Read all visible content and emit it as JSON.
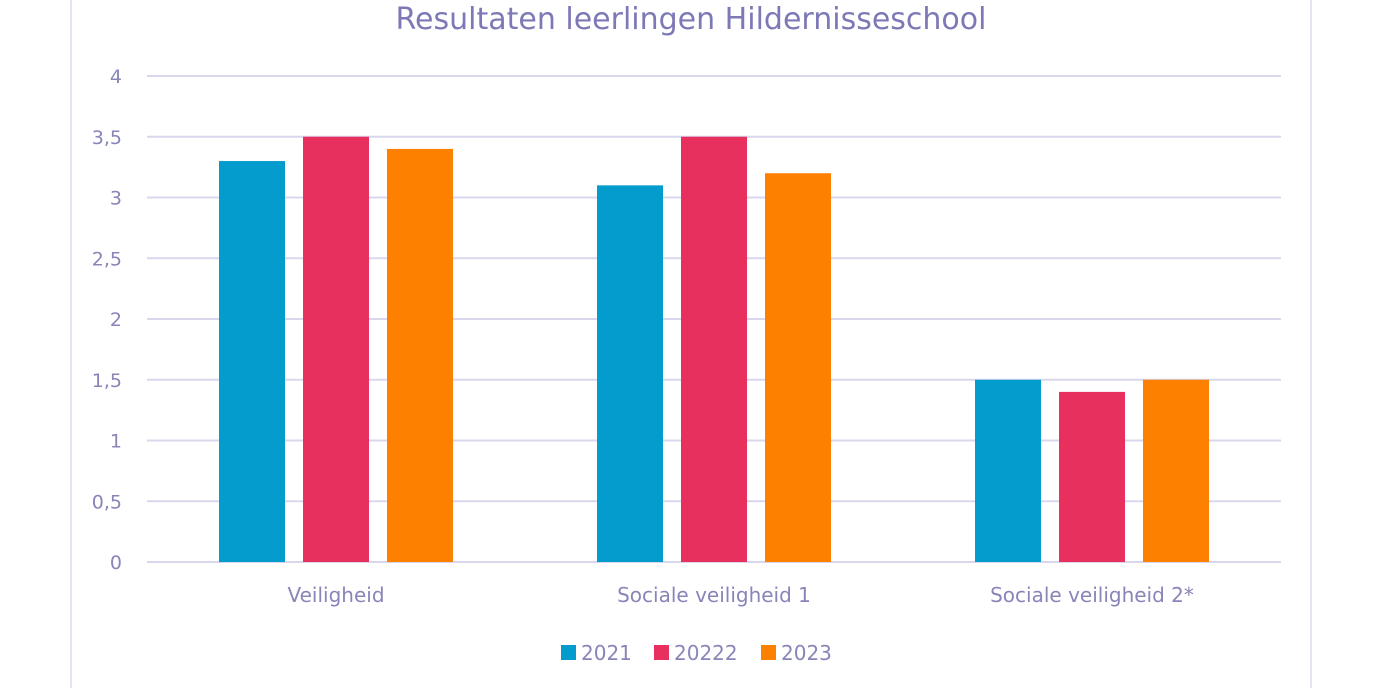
{
  "chart_data": {
    "type": "bar",
    "title": "Resultaten leerlingen Hildernisseschool",
    "xlabel": "",
    "ylabel": "",
    "categories": [
      "Veiligheid",
      "Sociale veiligheid 1",
      "Sociale veiligheid 2*"
    ],
    "series": [
      {
        "name": "2021",
        "color": "#049ccc",
        "values": [
          3.3,
          3.1,
          1.5
        ]
      },
      {
        "name": "20222",
        "color": "#e8305f",
        "values": [
          3.5,
          3.5,
          1.4
        ]
      },
      {
        "name": "2023",
        "color": "#fd8001",
        "values": [
          3.4,
          3.2,
          1.5
        ]
      }
    ],
    "ylim": [
      0,
      4
    ],
    "yticks": [
      "0",
      "0,5",
      "1",
      "1,5",
      "2",
      "2,5",
      "3",
      "3,5",
      "4"
    ],
    "ytick_values": [
      0,
      0.5,
      1,
      1.5,
      2,
      2.5,
      3,
      3.5,
      4
    ],
    "grid": true,
    "legend_position": "bottom"
  }
}
